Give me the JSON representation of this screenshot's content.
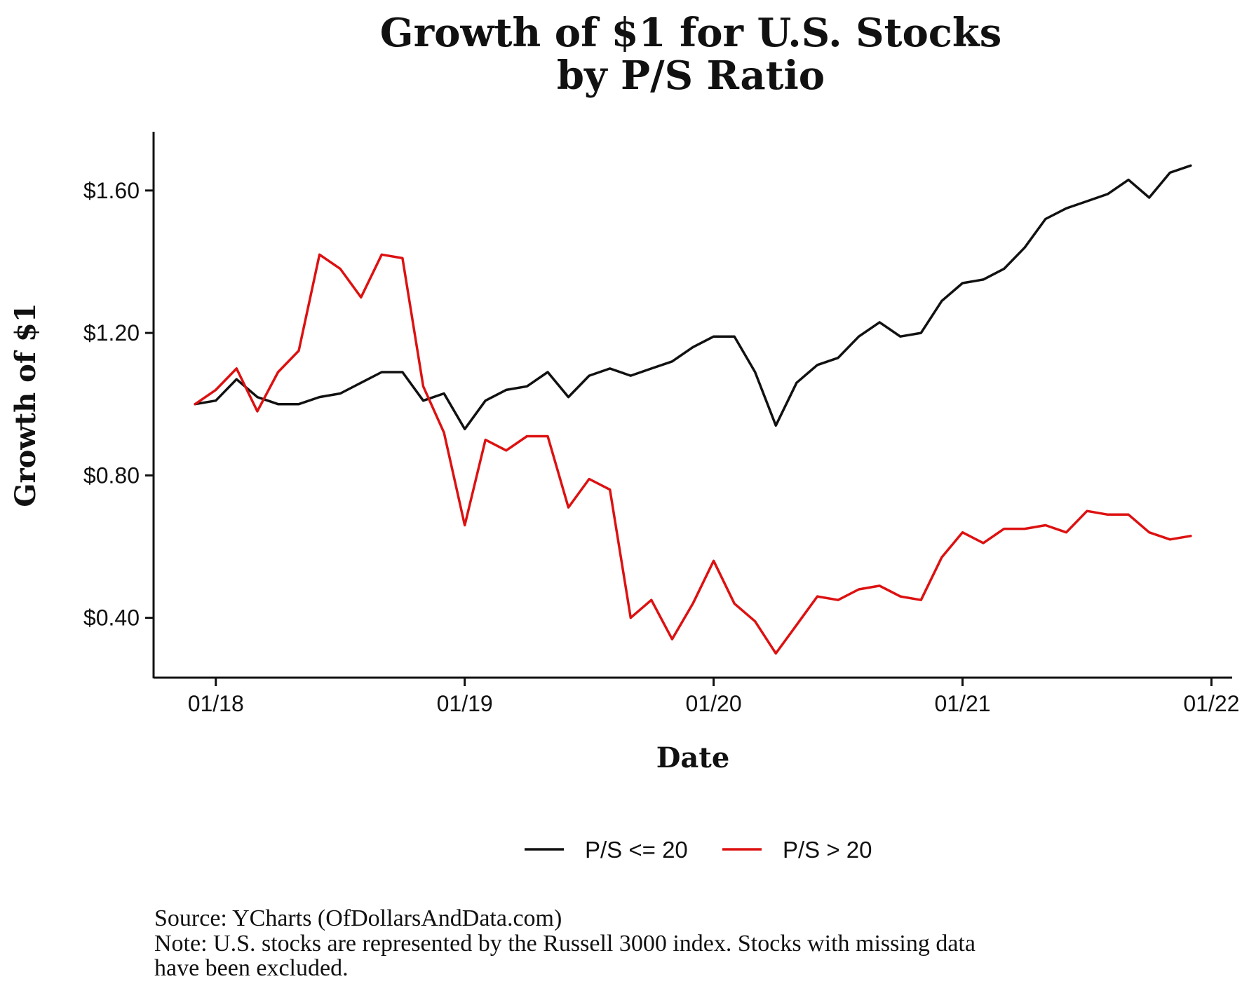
{
  "chart_data": {
    "type": "line",
    "title_lines": [
      "Growth of $1 for U.S. Stocks",
      "by P/S Ratio"
    ],
    "xlabel": "Date",
    "ylabel": "Growth of $1",
    "x_ticks": [
      {
        "label": "01/18",
        "value": "2018-01"
      },
      {
        "label": "01/19",
        "value": "2019-01"
      },
      {
        "label": "01/20",
        "value": "2020-01"
      },
      {
        "label": "01/21",
        "value": "2021-01"
      },
      {
        "label": "01/22",
        "value": "2022-01"
      }
    ],
    "y_ticks": [
      {
        "label": "$0.40",
        "value": 0.4
      },
      {
        "label": "$0.80",
        "value": 0.8
      },
      {
        "label": "$1.20",
        "value": 1.2
      },
      {
        "label": "$1.60",
        "value": 1.6
      }
    ],
    "xlim": [
      "2017-10",
      "2022-02"
    ],
    "ylim": [
      0.232,
      1.765
    ],
    "grid": false,
    "legend_position": "bottom",
    "x": [
      "2017-12",
      "2018-01",
      "2018-02",
      "2018-03",
      "2018-04",
      "2018-05",
      "2018-06",
      "2018-07",
      "2018-08",
      "2018-09",
      "2018-10",
      "2018-11",
      "2018-12",
      "2019-01",
      "2019-02",
      "2019-03",
      "2019-04",
      "2019-05",
      "2019-06",
      "2019-07",
      "2019-08",
      "2019-09",
      "2019-10",
      "2019-11",
      "2019-12",
      "2020-01",
      "2020-02",
      "2020-03",
      "2020-04",
      "2020-05",
      "2020-06",
      "2020-07",
      "2020-08",
      "2020-09",
      "2020-10",
      "2020-11",
      "2020-12",
      "2021-01",
      "2021-02",
      "2021-03",
      "2021-04",
      "2021-05",
      "2021-06",
      "2021-07",
      "2021-08",
      "2021-09",
      "2021-10",
      "2021-11",
      "2021-12"
    ],
    "series": [
      {
        "name": "P/S <= 20",
        "color": "#111111",
        "values": [
          1.0,
          1.01,
          1.07,
          1.02,
          1.0,
          1.0,
          1.02,
          1.03,
          1.06,
          1.09,
          1.09,
          1.01,
          1.03,
          0.93,
          1.01,
          1.04,
          1.05,
          1.09,
          1.02,
          1.08,
          1.1,
          1.08,
          1.1,
          1.12,
          1.16,
          1.19,
          1.19,
          1.09,
          0.94,
          1.06,
          1.11,
          1.13,
          1.19,
          1.23,
          1.19,
          1.2,
          1.29,
          1.34,
          1.35,
          1.38,
          1.44,
          1.52,
          1.55,
          1.57,
          1.59,
          1.63,
          1.58,
          1.65,
          1.67
        ]
      },
      {
        "name": "P/S > 20",
        "color": "#dd1111",
        "values": [
          1.0,
          1.04,
          1.1,
          0.98,
          1.09,
          1.15,
          1.42,
          1.38,
          1.3,
          1.42,
          1.41,
          1.05,
          0.92,
          0.66,
          0.9,
          0.87,
          0.91,
          0.91,
          0.71,
          0.79,
          0.76,
          0.4,
          0.45,
          0.34,
          0.44,
          0.56,
          0.44,
          0.39,
          0.3,
          0.38,
          0.46,
          0.45,
          0.48,
          0.49,
          0.46,
          0.45,
          0.57,
          0.64,
          0.61,
          0.65,
          0.65,
          0.66,
          0.64,
          0.7,
          0.69,
          0.69,
          0.64,
          0.62,
          0.63
        ]
      }
    ]
  },
  "source_note": "Source: YCharts (OfDollarsAndData.com)",
  "note_lines": [
    "Note: U.S. stocks are represented by the Russell 3000 index. Stocks with missing data",
    "have been excluded."
  ]
}
